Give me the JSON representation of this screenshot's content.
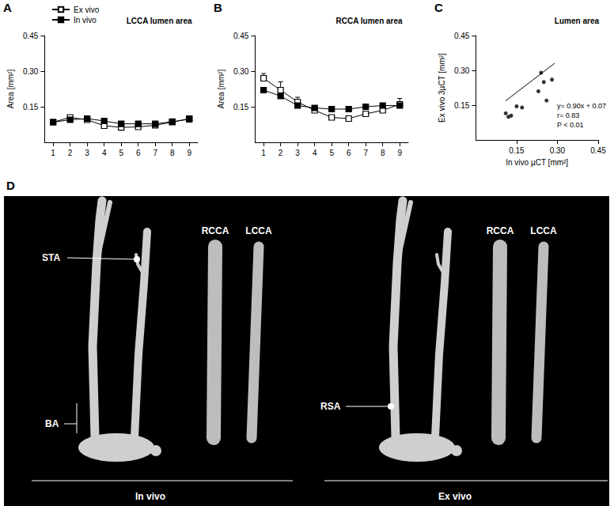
{
  "chart_data": [
    {
      "panel": "A",
      "type": "line",
      "title": "LCCA lumen area",
      "y_label": "Area [mm²]",
      "categories": [
        "1",
        "2",
        "3",
        "4",
        "5",
        "6",
        "7",
        "8",
        "9"
      ],
      "series": [
        {
          "name": "Ex vivo",
          "color": "#000000",
          "marker": "square_open",
          "values": [
            0.085,
            0.105,
            0.095,
            0.07,
            0.063,
            0.065,
            0.072,
            0.085,
            0.1
          ],
          "errors": [
            0.005,
            0.006,
            0.006,
            0.008,
            0.01,
            0.01,
            0.008,
            0.005,
            0.007
          ]
        },
        {
          "name": "In vivo",
          "color": "#000000",
          "marker": "square",
          "values": [
            0.085,
            0.095,
            0.1,
            0.09,
            0.078,
            0.078,
            0.078,
            0.087,
            0.097
          ]
        }
      ],
      "ylim": [
        0,
        0.45
      ],
      "yticks": [
        0.15,
        {
          "value": 0.3,
          "label": "0.30"
        },
        0.45
      ],
      "grid": false,
      "legend": "upper left"
    },
    {
      "panel": "B",
      "type": "line",
      "title": "RCCA lumen area",
      "y_label": "Area [mm²]",
      "categories": [
        "1",
        "2",
        "3",
        "4",
        "5",
        "6",
        "7",
        "8",
        "9"
      ],
      "series": [
        {
          "color": "#000000",
          "marker": "square_open",
          "values": [
            0.27,
            0.22,
            0.17,
            0.135,
            0.105,
            0.1,
            0.12,
            0.135,
            0.16
          ],
          "errors": [
            0.02,
            0.035,
            0.02,
            0.01,
            0.01,
            0.01,
            0.01,
            0.01,
            0.025
          ]
        },
        {
          "color": "#000000",
          "marker": "square",
          "values": [
            0.22,
            0.195,
            0.155,
            0.145,
            0.14,
            0.14,
            0.15,
            0.155,
            0.155
          ]
        }
      ],
      "ylim": [
        0,
        0.45
      ],
      "yticks": [
        0.15,
        {
          "value": 0.3,
          "label": "0.30"
        },
        0.45
      ],
      "grid": false
    },
    {
      "panel": "C",
      "type": "scatter",
      "title": "Lumen area",
      "x_label": "In vivo µCT [mm²]",
      "y_label": "Ex vivo 3µCT [mm²]",
      "x": [
        0.11,
        0.12,
        0.13,
        0.15,
        0.17,
        0.23,
        0.24,
        0.25,
        0.26,
        0.28
      ],
      "values": [
        0.115,
        0.1,
        0.105,
        0.145,
        0.14,
        0.21,
        0.29,
        0.25,
        0.17,
        0.26
      ],
      "color": "#000000",
      "marker": "circle",
      "fit": {
        "slope": 0.9,
        "intercept": 0.07,
        "x": [
          0.11,
          0.29
        ]
      },
      "annotations": [
        "y= 0.90x + 0.07",
        "r= 0.83",
        "P < 0.01"
      ],
      "xlim": [
        0,
        0.45
      ],
      "xticks": [
        0.15,
        {
          "value": 0.3,
          "label": "0.30"
        },
        0.45
      ],
      "ylim": [
        0,
        0.45
      ],
      "yticks": [
        0.15,
        {
          "value": 0.3,
          "label": "0.30"
        },
        0.45
      ],
      "grid": false
    }
  ],
  "panel_d": {
    "panel": "D",
    "views": [
      {
        "caption": "In vivo",
        "pointers": [
          "STA",
          "BA"
        ],
        "vessels": [
          "RCCA",
          "LCCA"
        ]
      },
      {
        "caption": "Ex vivo",
        "pointers": [
          "RSA"
        ],
        "vessels": [
          "RCCA",
          "LCCA"
        ]
      }
    ]
  }
}
